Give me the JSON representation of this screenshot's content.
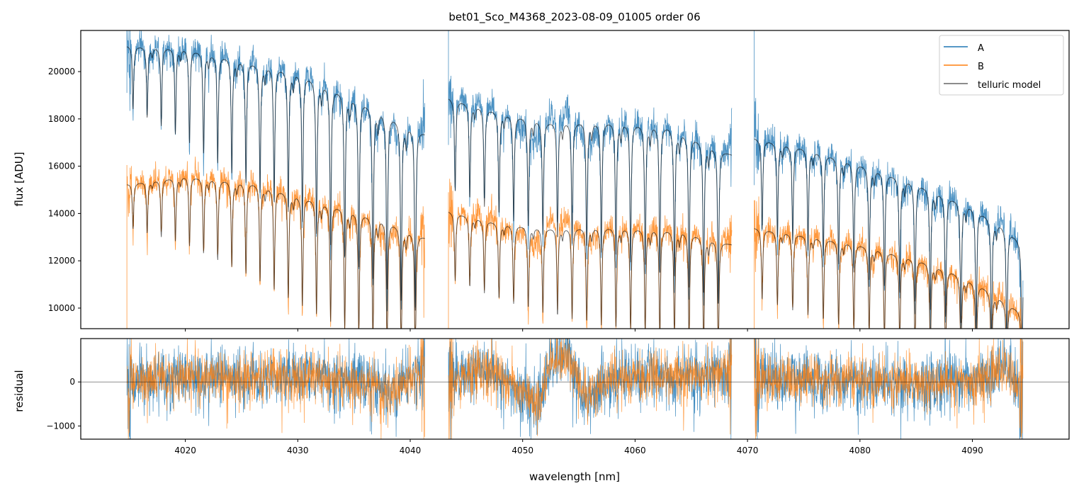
{
  "chart_data": [
    {
      "type": "line",
      "title": "bet01_Sco_M4368_2023-08-09_01005  order 06",
      "xlabel": "",
      "ylabel": "flux [ADU]",
      "xlim": [
        4010.7,
        4098.6
      ],
      "ylim": [
        9130,
        21740
      ],
      "yticks": [
        10000,
        12000,
        14000,
        16000,
        18000,
        20000
      ],
      "legend": {
        "placement": "top-right",
        "entries": [
          "A",
          "B",
          "telluric model"
        ]
      },
      "segments": [
        {
          "range": [
            4014.8,
            4041.3
          ],
          "line_start": 4015.35,
          "line_spacing": 1.255,
          "depth": [
            0.12,
            0.45
          ],
          "A_continuum": [
            [
              4014.8,
              21100
            ],
            [
              4020,
              21000
            ],
            [
              4030,
              20000
            ],
            [
              4036,
              18700
            ],
            [
              4041.3,
              17400
            ]
          ],
          "B_continuum": [
            [
              4014.8,
              15250
            ],
            [
              4020,
              15600
            ],
            [
              4026,
              15300
            ],
            [
              4033,
              14400
            ],
            [
              4038,
              13700
            ],
            [
              4041.3,
              13000
            ]
          ]
        },
        {
          "range": [
            4043.4,
            4068.6
          ],
          "line_start": 4044.0,
          "line_spacing": 1.3,
          "depth": [
            0.2,
            0.4
          ],
          "A_continuum": [
            [
              4043.4,
              18900
            ],
            [
              4048,
              18300
            ],
            [
              4052,
              17900
            ],
            [
              4058,
              17900
            ],
            [
              4063,
              17700
            ],
            [
              4068.6,
              16500
            ]
          ],
          "B_continuum": [
            [
              4043.4,
              14100
            ],
            [
              4048,
              13600
            ],
            [
              4052,
              13400
            ],
            [
              4058,
              13450
            ],
            [
              4064,
              13300
            ],
            [
              4068.6,
              12700
            ]
          ]
        },
        {
          "range": [
            4070.6,
            4094.5
          ],
          "line_start": 4071.3,
          "line_spacing": 1.36,
          "depth": [
            0.22,
            0.4
          ],
          "A_continuum": [
            [
              4070.6,
              17200
            ],
            [
              4075,
              16800
            ],
            [
              4080,
              16100
            ],
            [
              4085,
              15300
            ],
            [
              4090,
              14300
            ],
            [
              4093,
              13400
            ],
            [
              4094.5,
              12700
            ]
          ],
          "B_continuum": [
            [
              4070.6,
              13400
            ],
            [
              4075,
              13100
            ],
            [
              4080,
              12700
            ],
            [
              4085,
              12100
            ],
            [
              4088,
              11600
            ],
            [
              4091,
              10900
            ],
            [
              4094.5,
              9800
            ]
          ]
        }
      ],
      "series": [
        {
          "name": "A",
          "color": "#1f77b4"
        },
        {
          "name": "B",
          "color": "#ff7f0e"
        },
        {
          "name": "telluric model",
          "color": "#000000"
        }
      ]
    },
    {
      "type": "line",
      "ylabel": "residual",
      "xlabel": "wavelength [nm]",
      "xlim": [
        4010.7,
        4098.6
      ],
      "ylim": [
        -1300,
        985
      ],
      "yticks": [
        -1000,
        0
      ],
      "xticks": [
        4020,
        4030,
        4040,
        4050,
        4060,
        4070,
        4080,
        4090
      ],
      "hline": 0,
      "residual_trend": [
        [
          4014.8,
          0
        ],
        [
          4020,
          100
        ],
        [
          4030,
          150
        ],
        [
          4036,
          0
        ],
        [
          4038,
          -300
        ],
        [
          4040,
          100
        ],
        [
          4041.3,
          300
        ],
        [
          4043.4,
          0
        ],
        [
          4046,
          400
        ],
        [
          4049,
          -100
        ],
        [
          4051.5,
          -500
        ],
        [
          4052.5,
          500
        ],
        [
          4054,
          700
        ],
        [
          4055.5,
          -400
        ],
        [
          4058,
          100
        ],
        [
          4068.6,
          200
        ],
        [
          4070.6,
          100
        ],
        [
          4080,
          0
        ],
        [
          4090,
          0
        ],
        [
          4093,
          400
        ],
        [
          4094.5,
          -300
        ]
      ]
    }
  ]
}
